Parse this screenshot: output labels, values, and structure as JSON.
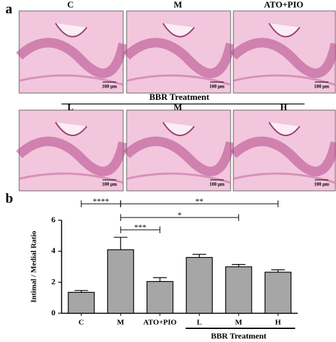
{
  "figure": {
    "panel_a": "a",
    "panel_b": "b",
    "image_labels": [
      "C",
      "M",
      "ATO+PIO",
      "L",
      "M",
      "H"
    ],
    "group_label": "BBR Treatment",
    "scale_bar": "100 μm"
  },
  "chart_data": {
    "type": "bar",
    "y_label": "Intimal / Medial Ratio",
    "categories": [
      "C",
      "M",
      "ATO+PIO",
      "L",
      "M",
      "H"
    ],
    "values": [
      1.35,
      4.1,
      2.05,
      3.6,
      3.0,
      2.65
    ],
    "errors": [
      0.12,
      0.8,
      0.25,
      0.2,
      0.15,
      0.15
    ],
    "color": "#a6a6a6",
    "ylim": [
      0,
      6
    ],
    "yticks": [
      0,
      2,
      4,
      6
    ],
    "group": {
      "label": "BBR Treatment",
      "categories": [
        3,
        5
      ]
    },
    "annotations": [
      {
        "label": "****",
        "between": [
          0,
          1
        ]
      },
      {
        "label": "**",
        "between": [
          1,
          5
        ]
      },
      {
        "label": "*",
        "between": [
          1,
          4
        ]
      },
      {
        "label": "***",
        "between": [
          1,
          2
        ]
      }
    ]
  }
}
